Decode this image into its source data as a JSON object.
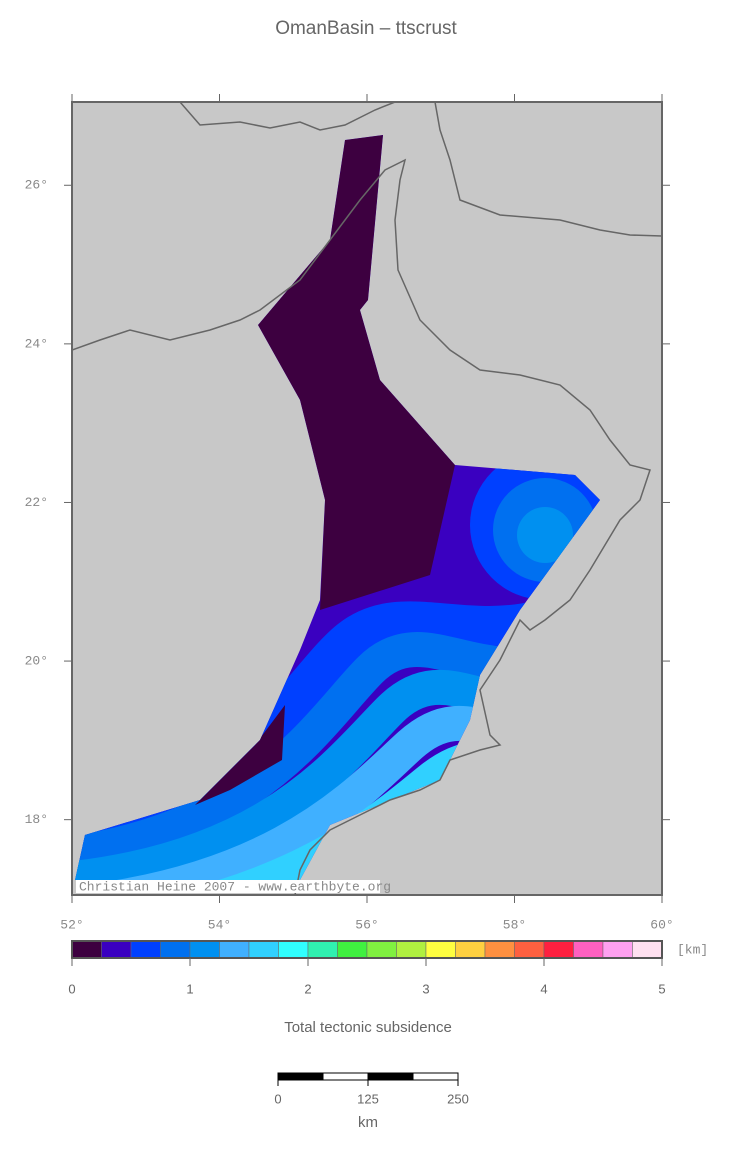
{
  "title": "OmanBasin – ttscrust",
  "map": {
    "lon_lim": [
      52,
      60
    ],
    "lat_lim": [
      17.05,
      27.05
    ],
    "lon_ticks": [
      {
        "value": 52,
        "label": "52°"
      },
      {
        "value": 54,
        "label": "54°"
      },
      {
        "value": 56,
        "label": "56°"
      },
      {
        "value": 58,
        "label": "58°"
      },
      {
        "value": 60,
        "label": "60°"
      }
    ],
    "lat_ticks": [
      {
        "value": 18,
        "label": "18°"
      },
      {
        "value": 20,
        "label": "20°"
      },
      {
        "value": 22,
        "label": "22°"
      },
      {
        "value": 24,
        "label": "24°"
      },
      {
        "value": 26,
        "label": "26°"
      }
    ],
    "credit": "Christian Heine 2007 - www.earthbyte.org"
  },
  "colorbar": {
    "colors": [
      "#3d0040",
      "#3a00c0",
      "#0040ff",
      "#0070f0",
      "#0090f0",
      "#40b0ff",
      "#30d0ff",
      "#30ffff",
      "#30f0b0",
      "#40f040",
      "#80f040",
      "#b0f040",
      "#ffff40",
      "#ffd040",
      "#ff9040",
      "#ff6040",
      "#ff2040",
      "#ff60c0",
      "#ffa0f0",
      "#ffe0f0"
    ],
    "lim": [
      0,
      5
    ],
    "ticks": [
      0,
      1,
      2,
      3,
      4,
      5
    ],
    "unit": "[km]",
    "label": "Total tectonic subsidence"
  },
  "scale_bar": {
    "ticks": [
      0,
      125,
      250
    ],
    "unit": "km"
  }
}
